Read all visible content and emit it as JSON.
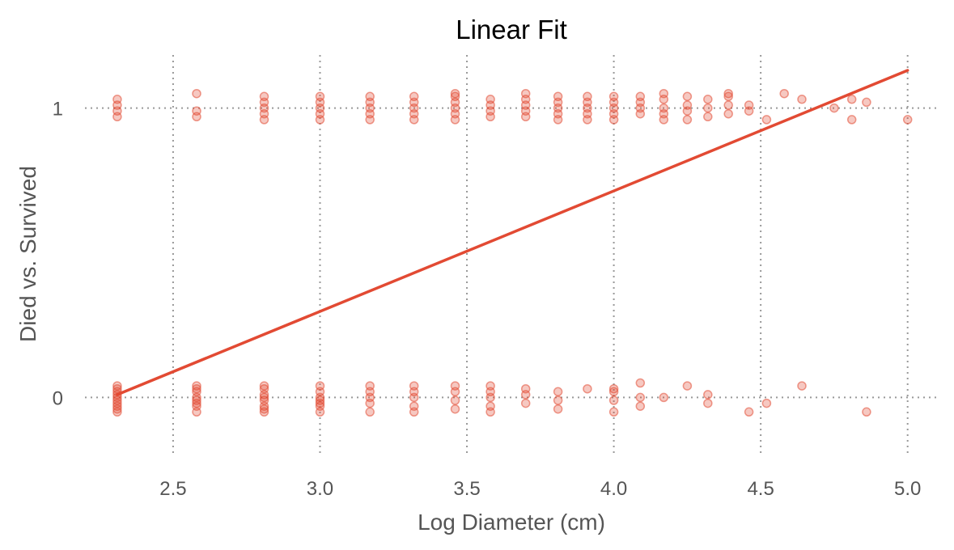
{
  "chart_data": {
    "type": "scatter",
    "title": "Linear Fit",
    "xlabel": "Log Diameter (cm)",
    "ylabel": "Died vs. Survived",
    "xlim": [
      2.2,
      5.1
    ],
    "ylim": [
      -0.2,
      1.2
    ],
    "x_ticks": [
      2.5,
      3.0,
      3.5,
      4.0,
      4.5,
      5.0
    ],
    "x_tick_labels": [
      "2.5",
      "3.0",
      "3.5",
      "4.0",
      "4.5",
      "5.0"
    ],
    "y_ticks": [
      0,
      1
    ],
    "y_tick_labels": [
      "0",
      "1"
    ],
    "grid": true,
    "point_color": "#e24a33",
    "point_opacity": 0.3,
    "line_color": "#e24a33",
    "fit_line": {
      "x": [
        2.31,
        5.0
      ],
      "y": [
        0.01,
        1.13
      ]
    },
    "series": [
      {
        "points": [
          [
            2.31,
            -0.05
          ],
          [
            2.31,
            -0.03
          ],
          [
            2.31,
            -0.02
          ],
          [
            2.31,
            -0.01
          ],
          [
            2.31,
            0.0
          ],
          [
            2.31,
            0.01
          ],
          [
            2.31,
            0.02
          ],
          [
            2.31,
            0.03
          ],
          [
            2.31,
            0.04
          ],
          [
            2.31,
            -0.04
          ],
          [
            2.58,
            -0.05
          ],
          [
            2.58,
            -0.03
          ],
          [
            2.58,
            -0.01
          ],
          [
            2.58,
            0.0
          ],
          [
            2.58,
            0.02
          ],
          [
            2.58,
            0.03
          ],
          [
            2.58,
            0.04
          ],
          [
            2.58,
            -0.02
          ],
          [
            2.81,
            -0.05
          ],
          [
            2.81,
            -0.03
          ],
          [
            2.81,
            -0.01
          ],
          [
            2.81,
            0.0
          ],
          [
            2.81,
            0.01
          ],
          [
            2.81,
            0.03
          ],
          [
            2.81,
            0.04
          ],
          [
            2.81,
            -0.04
          ],
          [
            3.0,
            -0.05
          ],
          [
            3.0,
            -0.03
          ],
          [
            3.0,
            -0.01
          ],
          [
            3.0,
            0.0
          ],
          [
            3.0,
            0.02
          ],
          [
            3.0,
            0.04
          ],
          [
            3.0,
            -0.02
          ],
          [
            3.17,
            -0.05
          ],
          [
            3.17,
            -0.02
          ],
          [
            3.17,
            0.0
          ],
          [
            3.17,
            0.02
          ],
          [
            3.17,
            0.04
          ],
          [
            3.32,
            -0.05
          ],
          [
            3.32,
            -0.03
          ],
          [
            3.32,
            0.0
          ],
          [
            3.32,
            0.02
          ],
          [
            3.32,
            0.04
          ],
          [
            3.46,
            -0.04
          ],
          [
            3.46,
            -0.01
          ],
          [
            3.46,
            0.02
          ],
          [
            3.46,
            0.04
          ],
          [
            3.58,
            -0.05
          ],
          [
            3.58,
            -0.03
          ],
          [
            3.58,
            0.0
          ],
          [
            3.58,
            0.02
          ],
          [
            3.58,
            0.04
          ],
          [
            3.7,
            -0.02
          ],
          [
            3.7,
            0.01
          ],
          [
            3.7,
            0.03
          ],
          [
            3.81,
            -0.04
          ],
          [
            3.81,
            -0.01
          ],
          [
            3.81,
            0.02
          ],
          [
            3.91,
            0.03
          ],
          [
            4.0,
            -0.05
          ],
          [
            4.0,
            -0.01
          ],
          [
            4.0,
            0.02
          ],
          [
            4.0,
            0.03
          ],
          [
            4.09,
            -0.03
          ],
          [
            4.09,
            0.0
          ],
          [
            4.09,
            0.05
          ],
          [
            4.17,
            0.0
          ],
          [
            4.25,
            0.04
          ],
          [
            4.32,
            -0.02
          ],
          [
            4.32,
            0.01
          ],
          [
            4.46,
            -0.05
          ],
          [
            4.52,
            -0.02
          ],
          [
            4.64,
            0.04
          ],
          [
            4.86,
            -0.05
          ]
        ]
      },
      {
        "points": [
          [
            2.31,
            0.97
          ],
          [
            2.31,
            0.99
          ],
          [
            2.31,
            1.01
          ],
          [
            2.31,
            1.03
          ],
          [
            2.58,
            0.97
          ],
          [
            2.58,
            0.99
          ],
          [
            2.58,
            1.05
          ],
          [
            2.81,
            0.96
          ],
          [
            2.81,
            0.98
          ],
          [
            2.81,
            1.0
          ],
          [
            2.81,
            1.02
          ],
          [
            2.81,
            1.04
          ],
          [
            3.0,
            0.96
          ],
          [
            3.0,
            0.98
          ],
          [
            3.0,
            1.0
          ],
          [
            3.0,
            1.02
          ],
          [
            3.0,
            1.04
          ],
          [
            3.17,
            0.96
          ],
          [
            3.17,
            0.98
          ],
          [
            3.17,
            1.0
          ],
          [
            3.17,
            1.02
          ],
          [
            3.17,
            1.04
          ],
          [
            3.32,
            0.96
          ],
          [
            3.32,
            0.98
          ],
          [
            3.32,
            1.0
          ],
          [
            3.32,
            1.02
          ],
          [
            3.32,
            1.04
          ],
          [
            3.46,
            0.96
          ],
          [
            3.46,
            0.98
          ],
          [
            3.46,
            1.0
          ],
          [
            3.46,
            1.02
          ],
          [
            3.46,
            1.04
          ],
          [
            3.46,
            1.05
          ],
          [
            3.58,
            0.97
          ],
          [
            3.58,
            0.99
          ],
          [
            3.58,
            1.01
          ],
          [
            3.58,
            1.03
          ],
          [
            3.7,
            0.97
          ],
          [
            3.7,
            0.99
          ],
          [
            3.7,
            1.01
          ],
          [
            3.7,
            1.03
          ],
          [
            3.7,
            1.05
          ],
          [
            3.81,
            0.96
          ],
          [
            3.81,
            0.98
          ],
          [
            3.81,
            1.0
          ],
          [
            3.81,
            1.02
          ],
          [
            3.81,
            1.04
          ],
          [
            3.91,
            0.96
          ],
          [
            3.91,
            0.98
          ],
          [
            3.91,
            1.0
          ],
          [
            3.91,
            1.02
          ],
          [
            3.91,
            1.04
          ],
          [
            4.0,
            0.96
          ],
          [
            4.0,
            0.98
          ],
          [
            4.0,
            1.0
          ],
          [
            4.0,
            1.02
          ],
          [
            4.0,
            1.04
          ],
          [
            4.09,
            0.98
          ],
          [
            4.09,
            1.0
          ],
          [
            4.09,
            1.02
          ],
          [
            4.09,
            1.04
          ],
          [
            4.17,
            0.96
          ],
          [
            4.17,
            0.98
          ],
          [
            4.17,
            1.0
          ],
          [
            4.17,
            1.03
          ],
          [
            4.17,
            1.05
          ],
          [
            4.25,
            0.96
          ],
          [
            4.25,
            0.99
          ],
          [
            4.25,
            1.01
          ],
          [
            4.25,
            1.04
          ],
          [
            4.32,
            0.97
          ],
          [
            4.32,
            1.0
          ],
          [
            4.32,
            1.03
          ],
          [
            4.39,
            0.98
          ],
          [
            4.39,
            1.01
          ],
          [
            4.39,
            1.04
          ],
          [
            4.39,
            1.05
          ],
          [
            4.46,
            0.99
          ],
          [
            4.46,
            1.01
          ],
          [
            4.52,
            0.96
          ],
          [
            4.58,
            1.05
          ],
          [
            4.64,
            1.03
          ],
          [
            4.75,
            1.0
          ],
          [
            4.81,
            0.96
          ],
          [
            4.81,
            1.03
          ],
          [
            4.86,
            1.02
          ],
          [
            5.0,
            0.96
          ]
        ]
      }
    ]
  }
}
